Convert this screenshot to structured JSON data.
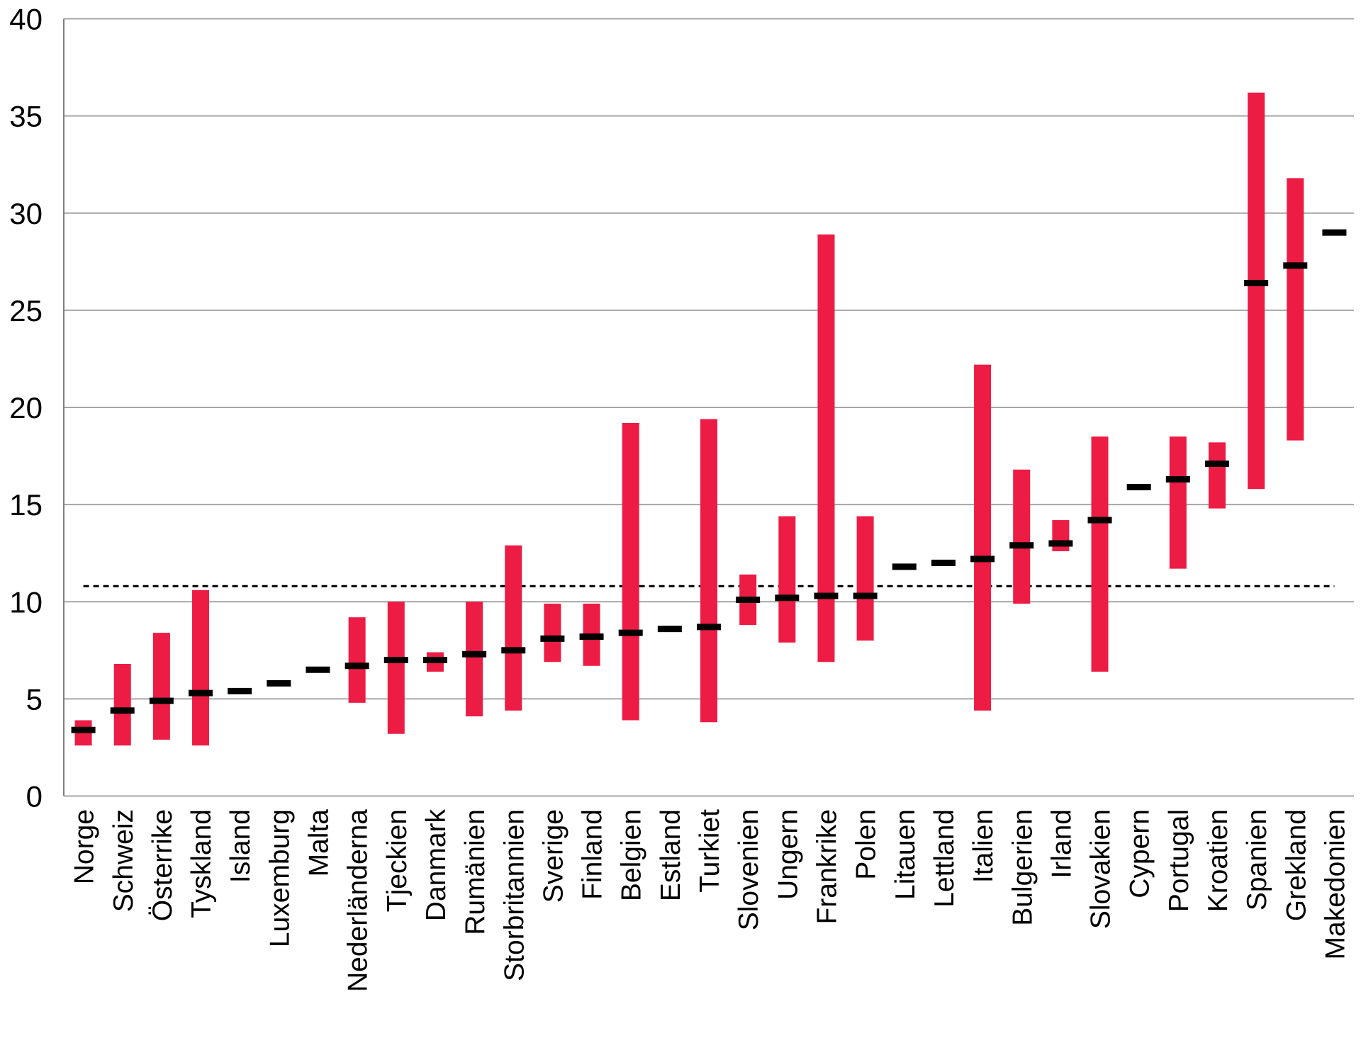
{
  "page": {
    "background_color": "#FFFFFF",
    "title": ""
  },
  "chart_data": {
    "type": "bar",
    "subtype": "floating-range-bars-with-median-markers",
    "title": "",
    "xlabel": "",
    "ylabel": "",
    "ylim": [
      0,
      40
    ],
    "yticks": [
      0,
      5,
      10,
      15,
      20,
      25,
      30,
      35,
      40
    ],
    "grid": true,
    "legend": "none",
    "gridline_color": "#A6A6A6",
    "axis_color": "#808080",
    "bar_color": "#ED1C45",
    "marker_color": "#000000",
    "reference_line": {
      "value": 10.8,
      "style": "dashed",
      "color": "#000000"
    },
    "categories": [
      "Norge",
      "Schweiz",
      "Österrike",
      "Tyskland",
      "Island",
      "Luxemburg",
      "Malta",
      "Nederländerna",
      "Tjeckien",
      "Danmark",
      "Rumänien",
      "Storbritannien",
      "Sverige",
      "Finland",
      "Belgien",
      "Estland",
      "Turkiet",
      "Slovenien",
      "Ungern",
      "Frankrike",
      "Polen",
      "Litauen",
      "Lettland",
      "Italien",
      "Bulgerien",
      "Irland",
      "Slovakien",
      "Cypern",
      "Portugal",
      "Kroatien",
      "Spanien",
      "Grekland",
      "Makedonien"
    ],
    "series": [
      {
        "name": "range_low",
        "values": [
          2.6,
          2.6,
          2.9,
          2.6,
          null,
          null,
          null,
          4.8,
          3.2,
          6.4,
          4.1,
          4.4,
          6.9,
          6.7,
          3.9,
          null,
          3.8,
          8.8,
          7.9,
          6.9,
          8.0,
          null,
          null,
          4.4,
          9.9,
          12.6,
          6.4,
          null,
          11.7,
          14.8,
          15.8,
          18.3,
          null
        ]
      },
      {
        "name": "range_high",
        "values": [
          3.9,
          6.8,
          8.4,
          10.6,
          null,
          null,
          null,
          9.2,
          10.0,
          7.4,
          10.0,
          12.9,
          9.9,
          9.9,
          19.2,
          null,
          19.4,
          11.4,
          14.4,
          28.9,
          14.4,
          null,
          null,
          22.2,
          16.8,
          14.2,
          18.5,
          null,
          18.5,
          18.2,
          36.2,
          31.8,
          null
        ]
      },
      {
        "name": "median_marker",
        "values": [
          3.4,
          4.4,
          4.9,
          5.3,
          5.4,
          5.8,
          6.5,
          6.7,
          7.0,
          7.0,
          7.3,
          7.5,
          8.1,
          8.2,
          8.4,
          8.6,
          8.7,
          10.1,
          10.2,
          10.3,
          10.3,
          11.8,
          12.0,
          12.2,
          12.9,
          13.0,
          14.2,
          15.9,
          16.3,
          17.1,
          26.4,
          27.3,
          29.0
        ]
      }
    ]
  }
}
